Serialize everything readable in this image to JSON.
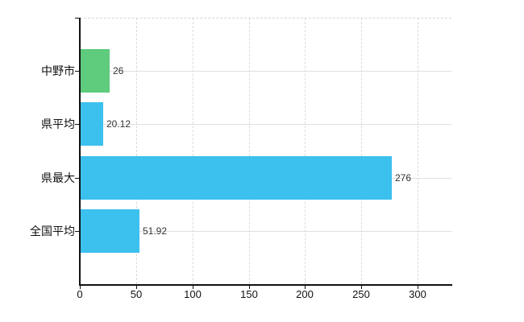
{
  "chart_data": {
    "type": "bar",
    "orientation": "horizontal",
    "title": "",
    "xlabel": "",
    "ylabel": "",
    "categories": [
      "中野市",
      "県平均",
      "県最大",
      "全国平均"
    ],
    "values": [
      26,
      20.12,
      276,
      51.92
    ],
    "value_labels": [
      "26",
      "20.12",
      "276",
      "51.92"
    ],
    "bar_colors": [
      "#5ecb7d",
      "#3cc0ee",
      "#3cc0ee",
      "#3cc0ee"
    ],
    "x_ticks": [
      0,
      50,
      100,
      150,
      200,
      250,
      300
    ],
    "x_tick_labels": [
      "0",
      "50",
      "100",
      "150",
      "200",
      "250",
      "300"
    ],
    "xlim": [
      0,
      330
    ],
    "grid": true,
    "legend": false
  },
  "style": {
    "background": "#ffffff",
    "axis_color": "#111111",
    "grid_horizontal_color": "#dce2dc",
    "grid_vertical_color": "#d9d9d9",
    "plot_top_border_color": "#d6d6d6",
    "category_text_color": "#111111",
    "value_text_color": "#333333",
    "tick_text_color": "#111111"
  }
}
